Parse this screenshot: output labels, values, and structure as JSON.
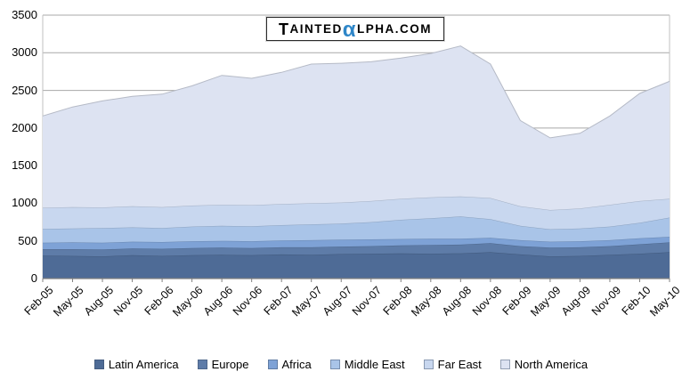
{
  "logo": {
    "t": "T",
    "ainted": "AINTED",
    "alpha": "α",
    "rest": "LPHA.COM",
    "alpha_color": "#2E86C8"
  },
  "colors": {
    "gridline": "#A8A8A8",
    "axis_line": "#808080",
    "plot_border": "#C2C2C2",
    "label_text": "#000000"
  },
  "chart_data": {
    "type": "area",
    "stacked": true,
    "title": "",
    "xlabel": "",
    "ylabel": "",
    "ylim": [
      0,
      3500
    ],
    "y_ticks": [
      0,
      500,
      1000,
      1500,
      2000,
      2500,
      3000,
      3500
    ],
    "grid": true,
    "legend_position": "bottom",
    "x_labels": [
      "Feb-05",
      "May-05",
      "Aug-05",
      "Nov-05",
      "Feb-06",
      "May-06",
      "Aug-06",
      "Nov-06",
      "Feb-07",
      "May-07",
      "Aug-07",
      "Nov-07",
      "Feb-08",
      "May-08",
      "Aug-08",
      "Nov-08",
      "Feb-09",
      "May-09",
      "Aug-09",
      "Nov-09",
      "Feb-10",
      "May-10"
    ],
    "series": [
      {
        "name": "Latin America",
        "color": "#4E6B96",
        "values": [
          305,
          300,
          295,
          310,
          300,
          310,
          315,
          310,
          320,
          315,
          325,
          330,
          335,
          330,
          335,
          350,
          320,
          295,
          300,
          315,
          330,
          350
        ]
      },
      {
        "name": "Europe",
        "color": "#5E7CA8",
        "values": [
          85,
          90,
          90,
          90,
          95,
          95,
          95,
          95,
          95,
          100,
          100,
          100,
          105,
          115,
          115,
          120,
          110,
          115,
          115,
          115,
          125,
          130
        ]
      },
      {
        "name": "Africa",
        "color": "#7EA2D6",
        "values": [
          85,
          90,
          90,
          90,
          90,
          90,
          90,
          90,
          90,
          95,
          90,
          90,
          85,
          85,
          80,
          70,
          80,
          80,
          80,
          80,
          80,
          75
        ]
      },
      {
        "name": "Middle East",
        "color": "#A9C4E8",
        "values": [
          185,
          185,
          195,
          190,
          185,
          195,
          200,
          200,
          205,
          210,
          215,
          230,
          255,
          270,
          295,
          250,
          190,
          165,
          170,
          180,
          205,
          255
        ]
      },
      {
        "name": "Far East",
        "color": "#C8D7EF",
        "values": [
          280,
          285,
          275,
          280,
          280,
          280,
          280,
          280,
          280,
          280,
          280,
          280,
          280,
          280,
          265,
          280,
          260,
          255,
          265,
          290,
          290,
          250
        ]
      },
      {
        "name": "North America",
        "color": "#DDE3F2",
        "values": [
          1220,
          1330,
          1415,
          1460,
          1500,
          1590,
          1720,
          1685,
          1750,
          1850,
          1850,
          1850,
          1870,
          1910,
          2000,
          1780,
          1140,
          960,
          1000,
          1180,
          1430,
          1560
        ]
      }
    ]
  }
}
